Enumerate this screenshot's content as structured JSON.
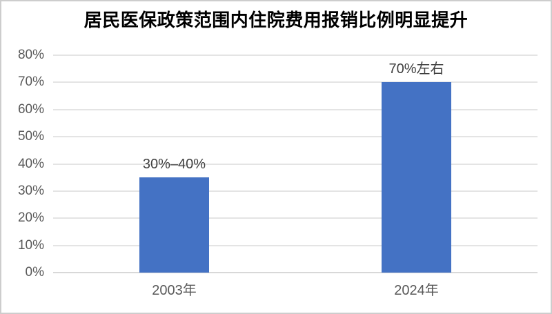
{
  "page": {
    "background": "#ffffff",
    "border_color": "#cdcdcd"
  },
  "chart_data": {
    "type": "bar",
    "title": "居民医保政策范围内住院费用报销比例明显提升",
    "categories": [
      "2003年",
      "2024年"
    ],
    "values": [
      35,
      70
    ],
    "data_labels": [
      "30%–40%",
      "70%左右"
    ],
    "xlabel": "",
    "ylabel": "",
    "ylim": [
      0,
      80
    ],
    "ytick_step": 10,
    "ytick_suffix": "%",
    "grid": true,
    "legend": "none",
    "bar_color": "#4472C4",
    "title_color": "#000000",
    "axis_tick_color": "#595959",
    "x_label_color": "#595959",
    "data_label_color": "#3f3f3f",
    "gridline_color": "#e4e4e4",
    "axis_line_color": "#d8d8d8"
  }
}
